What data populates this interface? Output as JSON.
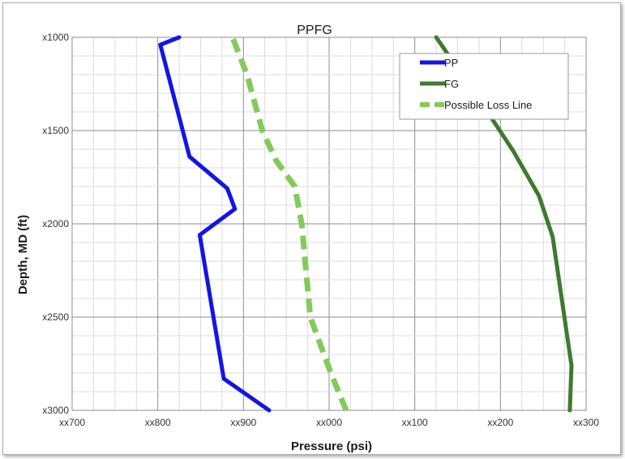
{
  "chart_data": {
    "type": "line",
    "title": "PPFG",
    "xlabel": "Pressure (psi)",
    "ylabel": "Depth, MD (ft)",
    "x_tick_labels": [
      "xx700",
      "xx800",
      "xx900",
      "xx000",
      "xx100",
      "xx200",
      "xx300"
    ],
    "y_tick_labels": [
      "x1000",
      "x1500",
      "x2000",
      "x2500",
      "x3000"
    ],
    "xlim": [
      700,
      1300
    ],
    "ylim": [
      1000,
      3000
    ],
    "y_inverted": true,
    "grid": true,
    "legend_position": "top-right",
    "series": [
      {
        "name": "PP",
        "color": "#1414e6",
        "style": "solid",
        "points": [
          [
            825,
            1000
          ],
          [
            803,
            1040
          ],
          [
            837,
            1640
          ],
          [
            881,
            1810
          ],
          [
            890,
            1920
          ],
          [
            849,
            2060
          ],
          [
            877,
            2830
          ],
          [
            930,
            3000
          ]
        ]
      },
      {
        "name": "FG",
        "color": "#3e7a2e",
        "style": "solid",
        "points": [
          [
            1125,
            1000
          ],
          [
            1140,
            1100
          ],
          [
            1192,
            1450
          ],
          [
            1215,
            1610
          ],
          [
            1245,
            1850
          ],
          [
            1261,
            2070
          ],
          [
            1283,
            2760
          ],
          [
            1281,
            3000
          ]
        ]
      },
      {
        "name": "Possible Loss Line",
        "color": "#82cb5a",
        "style": "dashed",
        "points": [
          [
            888,
            1010
          ],
          [
            904,
            1200
          ],
          [
            922,
            1500
          ],
          [
            938,
            1660
          ],
          [
            960,
            1800
          ],
          [
            968,
            2000
          ],
          [
            978,
            2500
          ],
          [
            1002,
            2800
          ],
          [
            1020,
            3000
          ]
        ]
      }
    ]
  }
}
